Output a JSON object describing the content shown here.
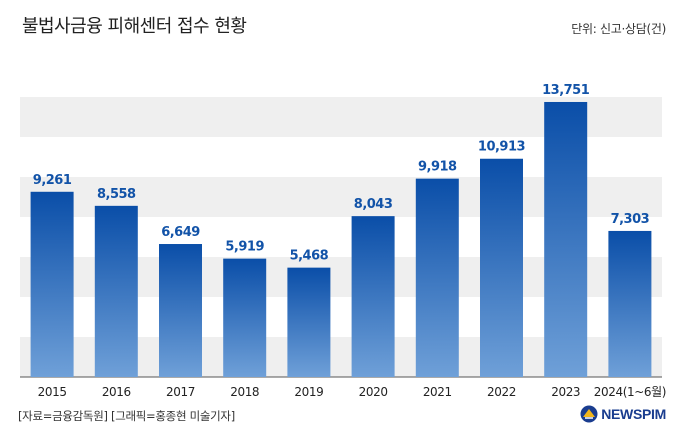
{
  "header": {
    "title": "불법사금융 피해센터 접수 현황",
    "unit": "단위: 신고·상담(건)"
  },
  "footer": {
    "source": "[자료=금융감독원] [그래픽=홍종현 미술기자]",
    "logo_text": "NEWSPIM"
  },
  "colors": {
    "bar_top": "#0a4ea8",
    "bar_bottom": "#6fa0d8",
    "value_label": "#1253a8",
    "band": "#efefef"
  },
  "chart_data": {
    "type": "bar",
    "categories": [
      "2015",
      "2016",
      "2017",
      "2018",
      "2019",
      "2020",
      "2021",
      "2022",
      "2023",
      "2024(1~6월)"
    ],
    "values": [
      9261,
      8558,
      6649,
      5919,
      5468,
      8043,
      9918,
      10913,
      13751,
      7303
    ],
    "value_labels": [
      "9,261",
      "8,558",
      "6,649",
      "5,919",
      "5,468",
      "8,043",
      "9,918",
      "10,913",
      "13,751",
      "7,303"
    ],
    "title": "불법사금융 피해센터 접수 현황",
    "xlabel": "",
    "ylabel": "",
    "ylim": [
      0,
      16000
    ],
    "grid": false,
    "legend": "none"
  }
}
